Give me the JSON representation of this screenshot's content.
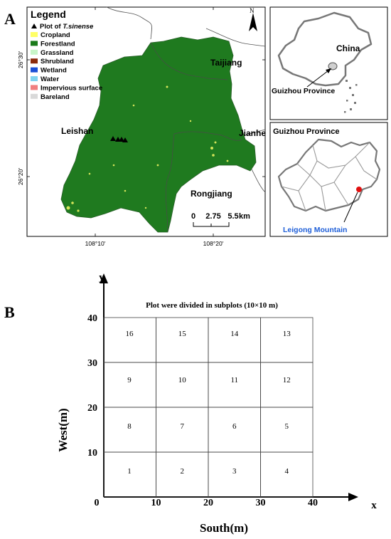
{
  "panel_a": {
    "label": "A",
    "legend": {
      "title": "Legend",
      "plot_prefix": "Plot of ",
      "plot_species": "T.sinense",
      "items": [
        {
          "label": "Cropland",
          "color": "#ffff66"
        },
        {
          "label": "Forestland",
          "color": "#1a7a1a"
        },
        {
          "label": "Grassland",
          "color": "#c8f5c8"
        },
        {
          "label": "Shrubland",
          "color": "#8b2a0a"
        },
        {
          "label": "Wetland",
          "color": "#1a4fd6"
        },
        {
          "label": "Water",
          "color": "#7fd4f0"
        },
        {
          "label": "Impervious surface",
          "color": "#f08080"
        },
        {
          "label": "Bareland",
          "color": "#d9d9d9"
        }
      ]
    },
    "north": "N",
    "lat_labels": [
      "26°30'",
      "26°20'"
    ],
    "lon_labels": [
      "108°10'",
      "108°20'"
    ],
    "places": [
      "Taijiang",
      "Leishan",
      "Jianhe",
      "Rongjiang"
    ],
    "scale_ticks": [
      "0",
      "2.75",
      "5.5",
      "km"
    ],
    "china_inset": {
      "title": "China",
      "pointer_label": "Guizhou Province"
    },
    "guizhou_inset": {
      "title": "Guizhou Province",
      "pointer_label": "Leigong Mountain"
    }
  },
  "panel_b": {
    "label": "B",
    "title": "Plot were divided in subplots (10×10 m)",
    "x_axis_letter": "x",
    "y_axis_letter": "y",
    "x_axis_title": "South(m)",
    "y_axis_title": "West(m)",
    "origin": "0",
    "x_ticks": [
      "10",
      "20",
      "30",
      "40"
    ],
    "y_ticks": [
      "10",
      "20",
      "30",
      "40"
    ],
    "grid_rows": [
      [
        "16",
        "15",
        "14",
        "13"
      ],
      [
        "9",
        "10",
        "11",
        "12"
      ],
      [
        "8",
        "7",
        "6",
        "5"
      ],
      [
        "1",
        "2",
        "3",
        "4"
      ]
    ]
  }
}
